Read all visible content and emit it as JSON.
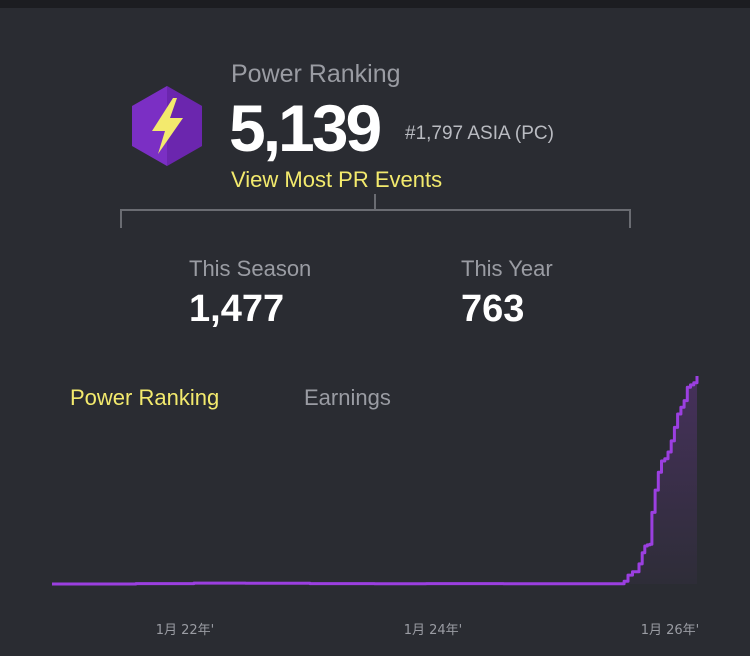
{
  "power_ranking": {
    "title": "Power Ranking",
    "value": "5,139",
    "rank": "#1,797 ASIA (PC)",
    "link_label": "View Most PR Events",
    "icon": "lightning-bolt-icon",
    "icon_color": "#7b2fc4",
    "bolt_color": "#f3ea6d"
  },
  "stats": {
    "season": {
      "label": "This Season",
      "value": "1,477"
    },
    "year": {
      "label": "This Year",
      "value": "763"
    }
  },
  "tabs": [
    {
      "label": "Power Ranking",
      "active": true
    },
    {
      "label": "Earnings",
      "active": false
    }
  ],
  "colors": {
    "background": "#2a2c32",
    "accent_yellow": "#f3ea6d",
    "line_purple": "#9b3fe0"
  },
  "chart_data": {
    "type": "line",
    "x_tick_labels": [
      "1月 22年'",
      "1月 24年'",
      "1月 26年'"
    ],
    "series": [
      {
        "values": [
          [
            0,
            0
          ],
          [
            0.13,
            2
          ],
          [
            0.22,
            4
          ],
          [
            0.3,
            3
          ],
          [
            0.4,
            2
          ],
          [
            0.5,
            1
          ],
          [
            0.58,
            2
          ],
          [
            0.7,
            1
          ],
          [
            0.8,
            1
          ],
          [
            0.88,
            1
          ],
          [
            0.887,
            12
          ],
          [
            0.893,
            40
          ],
          [
            0.9,
            55
          ],
          [
            0.91,
            90
          ],
          [
            0.915,
            140
          ],
          [
            0.919,
            170
          ],
          [
            0.923,
            175
          ],
          [
            0.927,
            178
          ],
          [
            0.93,
            320
          ],
          [
            0.935,
            420
          ],
          [
            0.94,
            500
          ],
          [
            0.945,
            550
          ],
          [
            0.95,
            560
          ],
          [
            0.955,
            590
          ],
          [
            0.96,
            640
          ],
          [
            0.965,
            700
          ],
          [
            0.97,
            760
          ],
          [
            0.975,
            790
          ],
          [
            0.98,
            820
          ],
          [
            0.985,
            880
          ],
          [
            0.99,
            890
          ],
          [
            0.995,
            900
          ],
          [
            1.0,
            930
          ]
        ]
      }
    ]
  }
}
